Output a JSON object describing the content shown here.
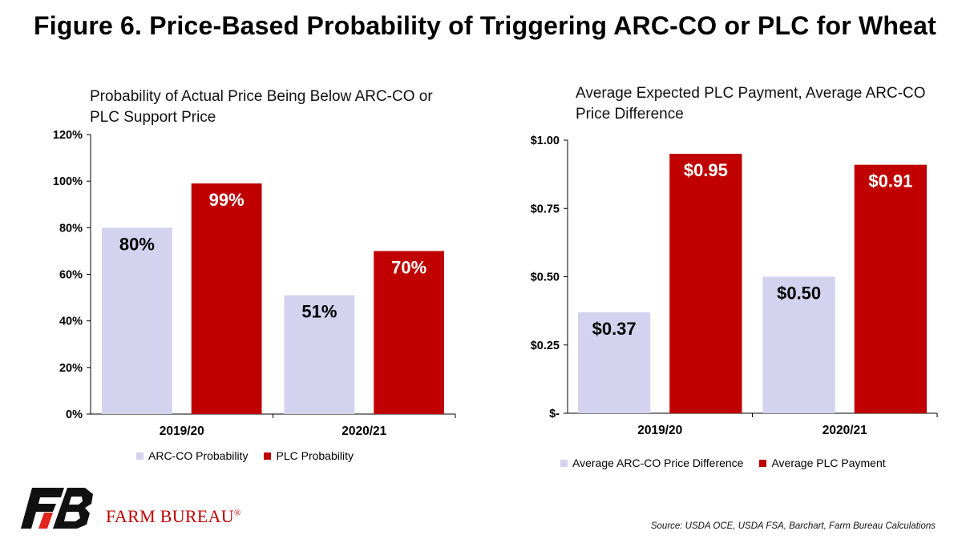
{
  "page": {
    "title": "Figure 6. Price-Based Probability of Triggering ARC-CO or PLC for Wheat",
    "source": "Source: USDA OCE, USDA FSA, Barchart, Farm Bureau Calculations",
    "logo_text": "FARM BUREAU",
    "logo_mark": "®"
  },
  "colors": {
    "arc": "#d3d3ef",
    "plc": "#c00000"
  },
  "chart_data": [
    {
      "type": "bar",
      "title": "Probability of Actual Price Being Below ARC-CO or PLC Support Price",
      "categories": [
        "2019/20",
        "2020/21"
      ],
      "series": [
        {
          "name": "ARC-CO Probability",
          "values": [
            80,
            51
          ],
          "labels": [
            "80%",
            "51%"
          ]
        },
        {
          "name": "PLC Probability",
          "values": [
            99,
            70
          ],
          "labels": [
            "99%",
            "70%"
          ]
        }
      ],
      "ylim": [
        0,
        120
      ],
      "yticks": [
        0,
        20,
        40,
        60,
        80,
        100,
        120
      ],
      "ytick_labels": [
        "0%",
        "20%",
        "40%",
        "60%",
        "80%",
        "100%",
        "120%"
      ],
      "legend": "bottom",
      "grid": false
    },
    {
      "type": "bar",
      "title": "Average Expected PLC Payment, Average ARC-CO Price Difference",
      "categories": [
        "2019/20",
        "2020/21"
      ],
      "series": [
        {
          "name": "Average ARC-CO Price Difference",
          "values": [
            0.37,
            0.5
          ],
          "labels": [
            "$0.37",
            "$0.50"
          ]
        },
        {
          "name": "Average PLC Payment",
          "values": [
            0.95,
            0.91
          ],
          "labels": [
            "$0.95",
            "$0.91"
          ]
        }
      ],
      "ylim": [
        0,
        1.0
      ],
      "yticks": [
        0,
        0.25,
        0.5,
        0.75,
        1.0
      ],
      "ytick_labels": [
        "$-",
        "$0.25",
        "$0.50",
        "$0.75",
        "$1.00"
      ],
      "legend": "bottom",
      "grid": false
    }
  ]
}
